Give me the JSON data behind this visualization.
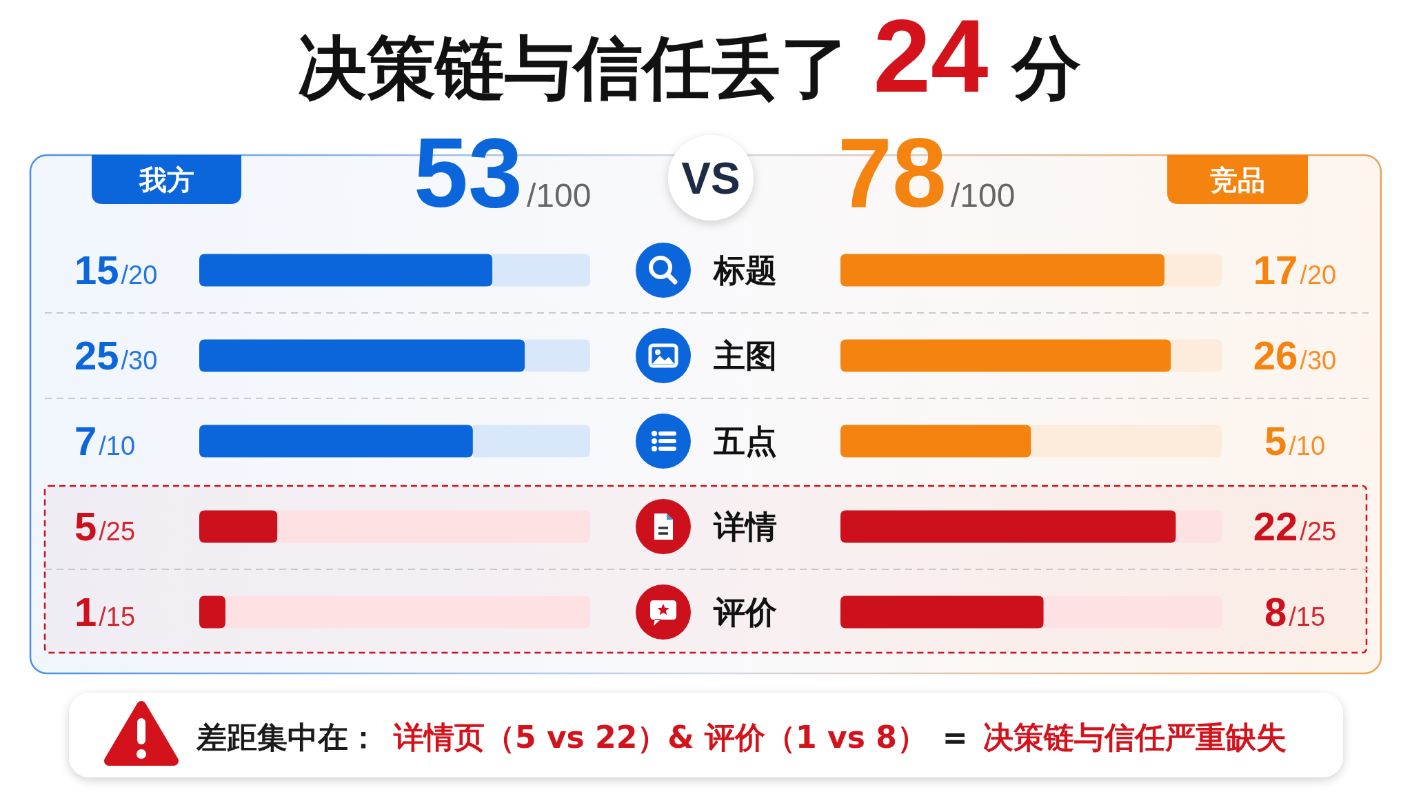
{
  "chart_data": [
    {
      "type": "bar",
      "orientation": "horizontal",
      "stacked": true,
      "title": "决策链与信任丢了 24 分",
      "subtitle": "53/100",
      "categories": [
        "标题",
        "主图",
        "五点",
        "详情",
        "评价"
      ],
      "tick_labels": false,
      "grid": "y",
      "series": [
        {
          "name": "我方",
          "color": "#0b66dc",
          "colors": [
            "#0b66dc",
            "#0b66dc",
            "#0b66dc",
            "#cc101c",
            "#cc101c"
          ],
          "values": [
            0.75,
            0.833,
            0.7,
            0.2,
            0.067
          ],
          "value_labels": [
            "15/20",
            "25/30",
            "7/10",
            "5/25",
            "1/15"
          ]
        },
        {
          "colors": [
            "#d9e7fb",
            "#d9e7fb",
            "#d9e7fb",
            "#fde1e3",
            "#fde1e3"
          ],
          "values": [
            0.25,
            0.167,
            0.3,
            0.8,
            0.933
          ]
        }
      ],
      "bands": [
        {
          "axis": "y",
          "from": "详情",
          "to": "评价",
          "color": "#cc101c"
        }
      ],
      "annotations": [
        "差距集中在：",
        "详情页（5 vs 22）& 评价（1 vs 8）",
        "=",
        "决策链与信任严重缺失"
      ]
    },
    {
      "type": "bar",
      "orientation": "horizontal",
      "stacked": true,
      "subtitle": "78/100",
      "categories": [
        "标题",
        "主图",
        "五点",
        "详情",
        "评价"
      ],
      "tick_labels": "y",
      "grid": "y",
      "series": [
        {
          "name": "竞品",
          "color": "#f5830f",
          "colors": [
            "#f5830f",
            "#f5830f",
            "#f5830f",
            "#cc101c",
            "#cc101c"
          ],
          "values": [
            0.85,
            0.867,
            0.5,
            0.88,
            0.533
          ],
          "value_labels": [
            "17/20",
            "26/30",
            "5/10",
            "22/25",
            "8/15"
          ]
        },
        {
          "colors": [
            "#fdebdb",
            "#fdebdb",
            "#fdebdb",
            "#fde1e3",
            "#fde1e3"
          ],
          "values": [
            0.15,
            0.133,
            0.5,
            0.12,
            0.467
          ]
        }
      ],
      "annotations": [
        "VS"
      ]
    }
  ]
}
